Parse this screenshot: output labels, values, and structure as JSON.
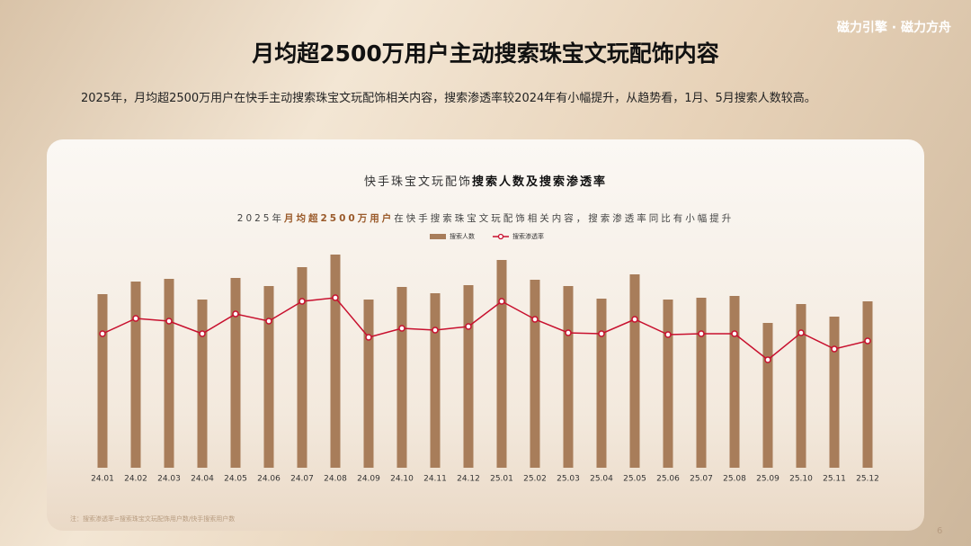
{
  "brand": {
    "left": "磁力引擎",
    "sep": "·",
    "right": "磁力方舟"
  },
  "header": {
    "title": "月均超2500万用户主动搜索珠宝文玩配饰内容",
    "summary": "2025年，月均超2500万用户在快手主动搜索珠宝文玩配饰相关内容，搜索渗透率较2024年有小幅提升，从趋势看，1月、5月搜索人数较高。"
  },
  "chart_data": {
    "type": "bar-line",
    "title_parts": [
      "快手珠宝文玩配饰",
      "搜索人数及搜索渗透率"
    ],
    "subtitle_parts": [
      "2025年",
      "月均超2500万用户",
      "在快手搜索珠宝文玩配饰相关内容，搜索渗透率同比有小幅提升"
    ],
    "categories": [
      "24.01",
      "24.02",
      "24.03",
      "24.04",
      "24.05",
      "24.06",
      "24.07",
      "24.08",
      "24.09",
      "24.10",
      "24.11",
      "24.12",
      "25.01",
      "25.02",
      "25.03",
      "25.04",
      "25.05",
      "25.06",
      "25.07",
      "25.08",
      "25.09",
      "25.10",
      "25.11",
      "25.12"
    ],
    "ylim": [
      0,
      250
    ],
    "y2lim": [
      0,
      250
    ],
    "series": [
      {
        "name": "搜索人数",
        "color": "#a87d5a",
        "values": [
          193,
          207,
          210,
          187,
          211,
          202,
          223,
          237,
          187,
          201,
          194,
          203,
          231,
          209,
          202,
          188,
          215,
          187,
          189,
          191,
          161,
          182,
          168,
          185
        ]
      },
      {
        "name": "搜索渗透率",
        "color": "#c8102e",
        "axis": "y2",
        "values": [
          149,
          166,
          163,
          149,
          171,
          163,
          185,
          189,
          145,
          155,
          153,
          157,
          185,
          165,
          150,
          149,
          165,
          148,
          149,
          149,
          120,
          150,
          132,
          141
        ]
      }
    ],
    "note": "注：搜索渗透率=搜索珠宝文玩配饰用户数/快手搜索用户数"
  },
  "page_number": "6"
}
